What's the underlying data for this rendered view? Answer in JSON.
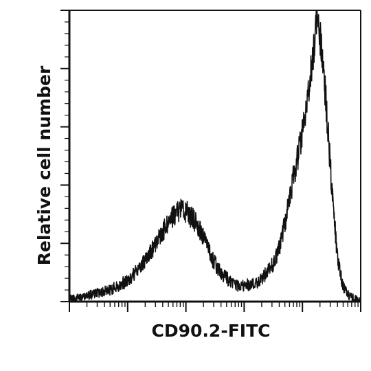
{
  "chart_data": {
    "type": "line",
    "title": "",
    "xlabel": "CD90.2-FITC",
    "ylabel": "Relative cell number",
    "x_scale": "log",
    "xlim": [
      -0.0,
      5.0
    ],
    "ylim": [
      0,
      1
    ],
    "grid": false,
    "legend": false,
    "series": [
      {
        "values": [
          [
            0.0,
            0.01
          ],
          [
            0.1,
            0.012
          ],
          [
            0.2,
            0.015
          ],
          [
            0.3,
            0.02
          ],
          [
            0.4,
            0.025
          ],
          [
            0.5,
            0.03
          ],
          [
            0.6,
            0.035
          ],
          [
            0.7,
            0.04
          ],
          [
            0.8,
            0.05
          ],
          [
            0.9,
            0.06
          ],
          [
            1.0,
            0.075
          ],
          [
            1.1,
            0.09
          ],
          [
            1.2,
            0.115
          ],
          [
            1.3,
            0.145
          ],
          [
            1.4,
            0.175
          ],
          [
            1.5,
            0.205
          ],
          [
            1.6,
            0.24
          ],
          [
            1.7,
            0.27
          ],
          [
            1.8,
            0.3
          ],
          [
            1.9,
            0.32
          ],
          [
            2.0,
            0.31
          ],
          [
            2.1,
            0.29
          ],
          [
            2.2,
            0.26
          ],
          [
            2.3,
            0.215
          ],
          [
            2.4,
            0.17
          ],
          [
            2.5,
            0.13
          ],
          [
            2.6,
            0.1
          ],
          [
            2.7,
            0.08
          ],
          [
            2.8,
            0.065
          ],
          [
            2.9,
            0.055
          ],
          [
            3.0,
            0.055
          ],
          [
            3.1,
            0.06
          ],
          [
            3.2,
            0.065
          ],
          [
            3.3,
            0.08
          ],
          [
            3.4,
            0.1
          ],
          [
            3.5,
            0.13
          ],
          [
            3.6,
            0.18
          ],
          [
            3.7,
            0.27
          ],
          [
            3.8,
            0.38
          ],
          [
            3.9,
            0.48
          ],
          [
            4.0,
            0.58
          ],
          [
            4.1,
            0.72
          ],
          [
            4.2,
            0.88
          ],
          [
            4.25,
            0.96
          ],
          [
            4.3,
            0.92
          ],
          [
            4.4,
            0.7
          ],
          [
            4.5,
            0.4
          ],
          [
            4.6,
            0.15
          ],
          [
            4.7,
            0.05
          ],
          [
            4.8,
            0.02
          ],
          [
            4.9,
            0.01
          ],
          [
            5.0,
            0.005
          ]
        ]
      }
    ]
  },
  "colors": {
    "line": "#111111",
    "axis": "#111111",
    "background": "#ffffff"
  }
}
